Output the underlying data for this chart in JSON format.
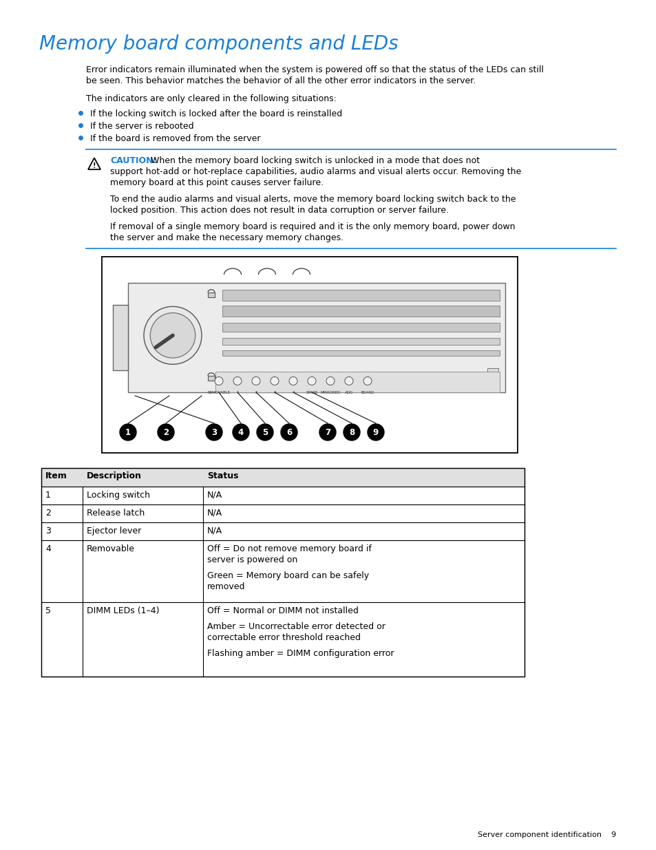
{
  "title": "Memory board components and LEDs",
  "title_color": "#1a7fd4",
  "title_fontsize": 20,
  "body_fontsize": 9.0,
  "small_fontsize": 8.0,
  "bg_color": "#ffffff",
  "text_color": "#000000",
  "para1_line1": "Error indicators remain illuminated when the system is powered off so that the status of the LEDs can still",
  "para1_line2": "be seen. This behavior matches the behavior of all the other error indicators in the server.",
  "para2": "The indicators are only cleared in the following situations:",
  "bullets": [
    "If the locking switch is locked after the board is reinstalled",
    "If the server is rebooted",
    "If the board is removed from the server"
  ],
  "bullet_color": "#1a7fd4",
  "caution_label": "CAUTION:",
  "caution_color": "#1a7fd4",
  "caution_line1": " When the memory board locking switch is unlocked in a mode that does not",
  "caution_line2": "support hot-add or hot-replace capabilities, audio alarms and visual alerts occur. Removing the",
  "caution_line3": "memory board at this point causes server failure.",
  "caution_para2_l1": "To end the audio alarms and visual alerts, move the memory board locking switch back to the",
  "caution_para2_l2": "locked position. This action does not result in data corruption or server failure.",
  "caution_para3_l1": "If removal of a single memory board is required and it is the only memory board, power down",
  "caution_para3_l2": "the server and make the necessary memory changes.",
  "table_headers": [
    "Item",
    "Description",
    "Status"
  ],
  "table_rows": [
    [
      "1",
      "Locking switch",
      "N/A"
    ],
    [
      "2",
      "Release latch",
      "N/A"
    ],
    [
      "3",
      "Ejector lever",
      "N/A"
    ],
    [
      "4",
      "Removable",
      "Off = Do not remove memory board if\nserver is powered on\n\nGreen = Memory board can be safely\nremoved"
    ],
    [
      "5",
      "DIMM LEDs (1–4)",
      "Off = Normal or DIMM not installed\n\nAmber = Uncorrectable error detected or\ncorrectable error threshold reached\n\nFlashing amber = DIMM configuration error"
    ]
  ],
  "footer_text": "Server component identification    9",
  "caution_line_color": "#1a7fd4",
  "table_border_color": "#000000"
}
